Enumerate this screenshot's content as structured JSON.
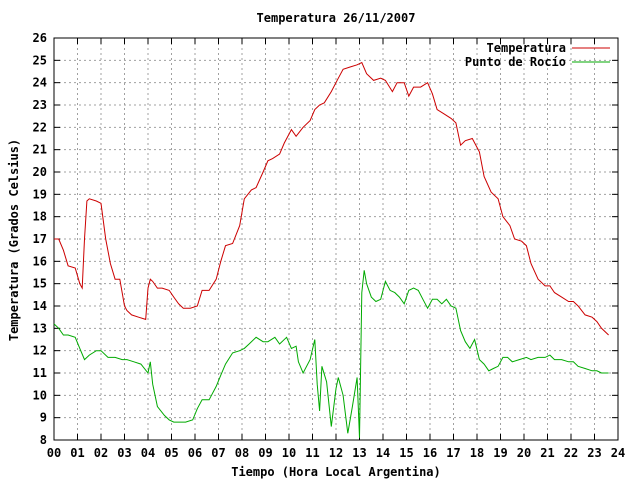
{
  "chart_data": {
    "type": "line",
    "title": "Temperatura 26/11/2007",
    "xlabel": "Tiempo (Hora Local Argentina)",
    "ylabel": "Temperatura (Grados Celsius)",
    "xlim": [
      0,
      24
    ],
    "ylim": [
      8,
      26
    ],
    "x_tick_labels": [
      "00",
      "01",
      "02",
      "03",
      "04",
      "05",
      "06",
      "07",
      "08",
      "09",
      "10",
      "11",
      "12",
      "13",
      "14",
      "15",
      "16",
      "17",
      "18",
      "19",
      "20",
      "21",
      "22",
      "23",
      "24"
    ],
    "y_ticks": [
      8,
      9,
      10,
      11,
      12,
      13,
      14,
      15,
      16,
      17,
      18,
      19,
      20,
      21,
      22,
      23,
      24,
      25,
      26
    ],
    "grid": true,
    "legend_position": "top-right",
    "series": [
      {
        "name": "Temperatura",
        "color": "#cc0000",
        "x": [
          0.0,
          0.2,
          0.4,
          0.6,
          0.9,
          1.1,
          1.2,
          1.3,
          1.4,
          1.5,
          1.8,
          2.0,
          2.2,
          2.4,
          2.6,
          2.8,
          3.0,
          3.1,
          3.3,
          3.6,
          3.9,
          4.0,
          4.1,
          4.2,
          4.4,
          4.6,
          4.9,
          5.1,
          5.3,
          5.5,
          5.8,
          6.1,
          6.3,
          6.6,
          6.9,
          7.1,
          7.3,
          7.6,
          7.9,
          8.1,
          8.4,
          8.6,
          8.9,
          9.1,
          9.3,
          9.6,
          9.8,
          10.1,
          10.3,
          10.6,
          10.9,
          11.1,
          11.3,
          11.5,
          11.8,
          12.1,
          12.3,
          12.6,
          12.9,
          13.1,
          13.3,
          13.6,
          13.9,
          14.1,
          14.4,
          14.6,
          14.9,
          15.1,
          15.3,
          15.6,
          15.9,
          16.1,
          16.3,
          16.6,
          16.9,
          17.1,
          17.3,
          17.5,
          17.8,
          18.1,
          18.3,
          18.6,
          18.9,
          19.1,
          19.4,
          19.6,
          19.9,
          20.1,
          20.3,
          20.6,
          20.9,
          21.1,
          21.3,
          21.6,
          21.9,
          22.1,
          22.3,
          22.6,
          22.9,
          23.1,
          23.3,
          23.6
        ],
        "values": [
          17.0,
          17.0,
          16.5,
          15.8,
          15.7,
          15.0,
          14.8,
          17.0,
          18.7,
          18.8,
          18.7,
          18.6,
          17.0,
          15.9,
          15.2,
          15.2,
          14.0,
          13.8,
          13.6,
          13.5,
          13.4,
          14.8,
          15.2,
          15.1,
          14.8,
          14.8,
          14.7,
          14.4,
          14.1,
          13.9,
          13.9,
          14.0,
          14.7,
          14.7,
          15.2,
          16.0,
          16.7,
          16.8,
          17.6,
          18.8,
          19.2,
          19.3,
          20.0,
          20.5,
          20.6,
          20.8,
          21.3,
          21.9,
          21.6,
          22.0,
          22.3,
          22.8,
          23.0,
          23.1,
          23.6,
          24.2,
          24.6,
          24.7,
          24.8,
          24.9,
          24.4,
          24.1,
          24.2,
          24.1,
          23.6,
          24.0,
          24.0,
          23.4,
          23.8,
          23.8,
          24.0,
          23.5,
          22.8,
          22.6,
          22.4,
          22.2,
          21.2,
          21.4,
          21.5,
          20.9,
          19.8,
          19.1,
          18.8,
          18.0,
          17.6,
          17.0,
          16.9,
          16.7,
          15.9,
          15.2,
          14.9,
          14.9,
          14.6,
          14.4,
          14.2,
          14.2,
          14.0,
          13.6,
          13.5,
          13.3,
          13.0,
          12.7
        ]
      },
      {
        "name": "Punto de Rocío",
        "color": "#00aa00",
        "x": [
          0.0,
          0.2,
          0.4,
          0.6,
          0.9,
          1.1,
          1.3,
          1.5,
          1.8,
          2.0,
          2.3,
          2.6,
          2.9,
          3.1,
          3.4,
          3.7,
          4.0,
          4.1,
          4.2,
          4.4,
          4.7,
          4.9,
          5.1,
          5.3,
          5.6,
          5.9,
          6.1,
          6.3,
          6.6,
          6.9,
          7.1,
          7.3,
          7.6,
          7.9,
          8.1,
          8.3,
          8.6,
          8.9,
          9.1,
          9.4,
          9.6,
          9.9,
          10.1,
          10.3,
          10.4,
          10.6,
          10.9,
          11.1,
          11.2,
          11.3,
          11.4,
          11.6,
          11.8,
          12.0,
          12.1,
          12.3,
          12.5,
          12.7,
          12.9,
          13.0,
          13.1,
          13.2,
          13.3,
          13.5,
          13.7,
          13.9,
          14.1,
          14.3,
          14.5,
          14.7,
          14.9,
          15.1,
          15.3,
          15.5,
          15.7,
          15.9,
          16.1,
          16.3,
          16.5,
          16.7,
          16.9,
          17.1,
          17.3,
          17.5,
          17.7,
          17.9,
          18.1,
          18.3,
          18.5,
          18.7,
          18.9,
          19.1,
          19.3,
          19.5,
          19.8,
          20.1,
          20.3,
          20.6,
          20.9,
          21.1,
          21.3,
          21.6,
          21.9,
          22.1,
          22.3,
          22.6,
          22.9,
          23.1,
          23.3,
          23.6
        ],
        "values": [
          13.2,
          13.0,
          12.7,
          12.7,
          12.6,
          12.1,
          11.6,
          11.8,
          12.0,
          12.0,
          11.7,
          11.7,
          11.6,
          11.6,
          11.5,
          11.4,
          11.0,
          11.5,
          10.5,
          9.5,
          9.1,
          8.9,
          8.8,
          8.8,
          8.8,
          8.9,
          9.4,
          9.8,
          9.8,
          10.4,
          10.9,
          11.4,
          11.9,
          12.0,
          12.1,
          12.3,
          12.6,
          12.4,
          12.4,
          12.6,
          12.3,
          12.6,
          12.1,
          12.2,
          11.5,
          11.0,
          11.6,
          12.5,
          10.5,
          9.3,
          11.3,
          10.6,
          8.6,
          10.3,
          10.8,
          10.0,
          8.3,
          9.5,
          10.8,
          8.1,
          14.6,
          15.6,
          15.0,
          14.4,
          14.2,
          14.3,
          15.1,
          14.7,
          14.6,
          14.4,
          14.1,
          14.7,
          14.8,
          14.7,
          14.3,
          13.9,
          14.3,
          14.3,
          14.1,
          14.3,
          14.0,
          13.9,
          12.9,
          12.4,
          12.1,
          12.5,
          11.6,
          11.4,
          11.1,
          11.2,
          11.3,
          11.7,
          11.7,
          11.5,
          11.6,
          11.7,
          11.6,
          11.7,
          11.7,
          11.8,
          11.6,
          11.6,
          11.5,
          11.5,
          11.3,
          11.2,
          11.1,
          11.1,
          11.0,
          11.0
        ]
      }
    ]
  }
}
